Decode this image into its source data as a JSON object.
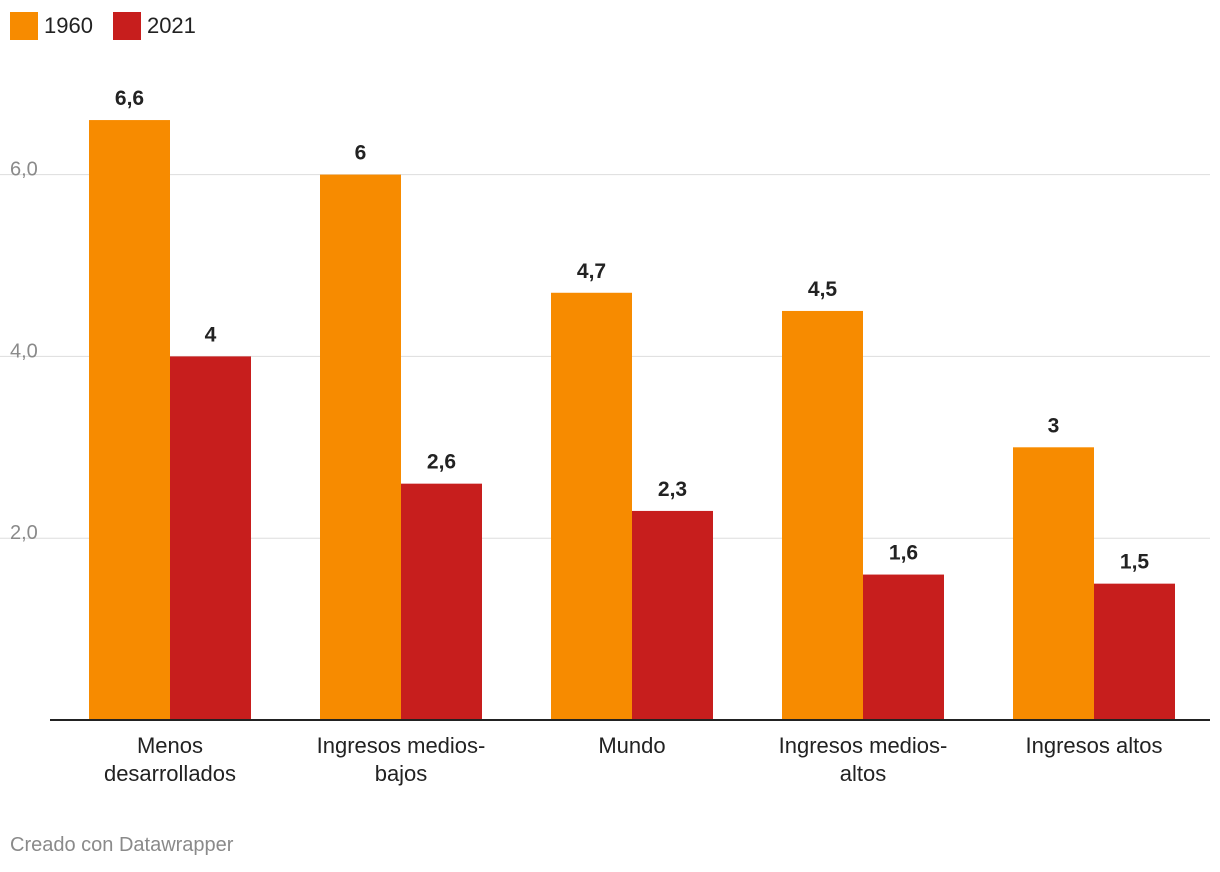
{
  "legend": [
    {
      "label": "1960",
      "color": "#f78b00"
    },
    {
      "label": "2021",
      "color": "#c71e1d"
    }
  ],
  "footer": "Creado con Datawrapper",
  "chart_data": {
    "type": "bar",
    "categories": [
      [
        "Menos",
        "desarrollados"
      ],
      [
        "Ingresos medios-",
        "bajos"
      ],
      [
        "Mundo"
      ],
      [
        "Ingresos medios-",
        "altos"
      ],
      [
        "Ingresos altos"
      ]
    ],
    "series": [
      {
        "name": "1960",
        "values": [
          6.6,
          6,
          4.7,
          4.5,
          3
        ],
        "labels": [
          "6,6",
          "6",
          "4,7",
          "4,5",
          "3"
        ],
        "color": "#f78b00"
      },
      {
        "name": "2021",
        "values": [
          4,
          2.6,
          2.3,
          1.6,
          1.5
        ],
        "labels": [
          "4",
          "2,6",
          "2,3",
          "1,6",
          "1,5"
        ],
        "color": "#c71e1d"
      }
    ],
    "yticks": [
      {
        "value": 2,
        "label": "2,0"
      },
      {
        "value": 4,
        "label": "4,0"
      },
      {
        "value": 6,
        "label": "6,0"
      }
    ],
    "ylim": [
      0,
      6.6
    ],
    "grid": true,
    "legend_position": "top-left"
  }
}
